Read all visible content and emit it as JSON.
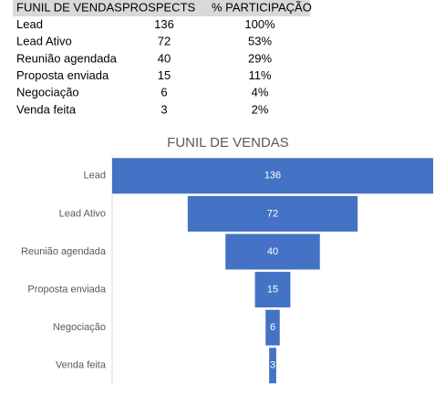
{
  "table": {
    "header": [
      "FUNIL DE VENDAS",
      "PROSPECTS",
      "% PARTICIPAÇÃO"
    ],
    "rows": [
      [
        "Lead",
        136,
        "100%"
      ],
      [
        "Lead Ativo",
        72,
        "53%"
      ],
      [
        "Reunião agendada",
        40,
        "29%"
      ],
      [
        "Proposta enviada",
        15,
        "11%"
      ],
      [
        "Negociação",
        6,
        "4%"
      ],
      [
        "Venda feita",
        3,
        "2%"
      ]
    ]
  },
  "chart_data": {
    "type": "funnel",
    "title": "FUNIL DE VENDAS",
    "categories": [
      "Lead",
      "Lead Ativo",
      "Reunião agendada",
      "Proposta enviada",
      "Negociação",
      "Venda feita"
    ],
    "values": [
      136,
      72,
      40,
      15,
      6,
      3
    ],
    "color": "#4472c4"
  }
}
